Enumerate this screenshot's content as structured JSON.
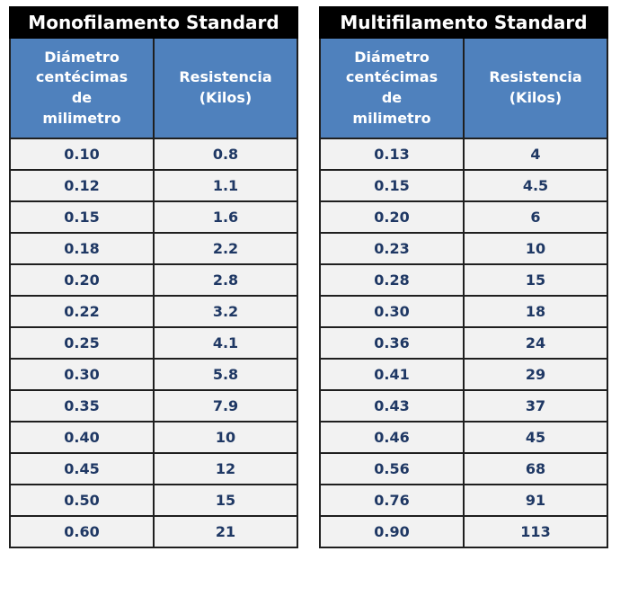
{
  "colors": {
    "title_bg": "#000000",
    "title_text": "#ffffff",
    "header_bg": "#4f81bd",
    "header_text": "#ffffff",
    "cell_bg": "#f2f2f2",
    "cell_text": "#1f3864",
    "border": "#1f1f1f",
    "page_bg": "#ffffff"
  },
  "tables": [
    {
      "title": "Monofilamento Standard",
      "col_headers": [
        "Diámetro\ncentécimas\nde\nmilimetro",
        "Resistencia\n(Kilos)"
      ],
      "rows": [
        [
          "0.10",
          "0.8"
        ],
        [
          "0.12",
          "1.1"
        ],
        [
          "0.15",
          "1.6"
        ],
        [
          "0.18",
          "2.2"
        ],
        [
          "0.20",
          "2.8"
        ],
        [
          "0.22",
          "3.2"
        ],
        [
          "0.25",
          "4.1"
        ],
        [
          "0.30",
          "5.8"
        ],
        [
          "0.35",
          "7.9"
        ],
        [
          "0.40",
          "10"
        ],
        [
          "0.45",
          "12"
        ],
        [
          "0.50",
          "15"
        ],
        [
          "0.60",
          "21"
        ]
      ]
    },
    {
      "title": "Multifilamento Standard",
      "col_headers": [
        "Diámetro\ncentécimas\nde\nmilimetro",
        "Resistencia\n(Kilos)"
      ],
      "rows": [
        [
          "0.13",
          "4"
        ],
        [
          "0.15",
          "4.5"
        ],
        [
          "0.20",
          "6"
        ],
        [
          "0.23",
          "10"
        ],
        [
          "0.28",
          "15"
        ],
        [
          "0.30",
          "18"
        ],
        [
          "0.36",
          "24"
        ],
        [
          "0.41",
          "29"
        ],
        [
          "0.43",
          "37"
        ],
        [
          "0.46",
          "45"
        ],
        [
          "0.56",
          "68"
        ],
        [
          "0.76",
          "91"
        ],
        [
          "0.90",
          "113"
        ]
      ]
    }
  ]
}
